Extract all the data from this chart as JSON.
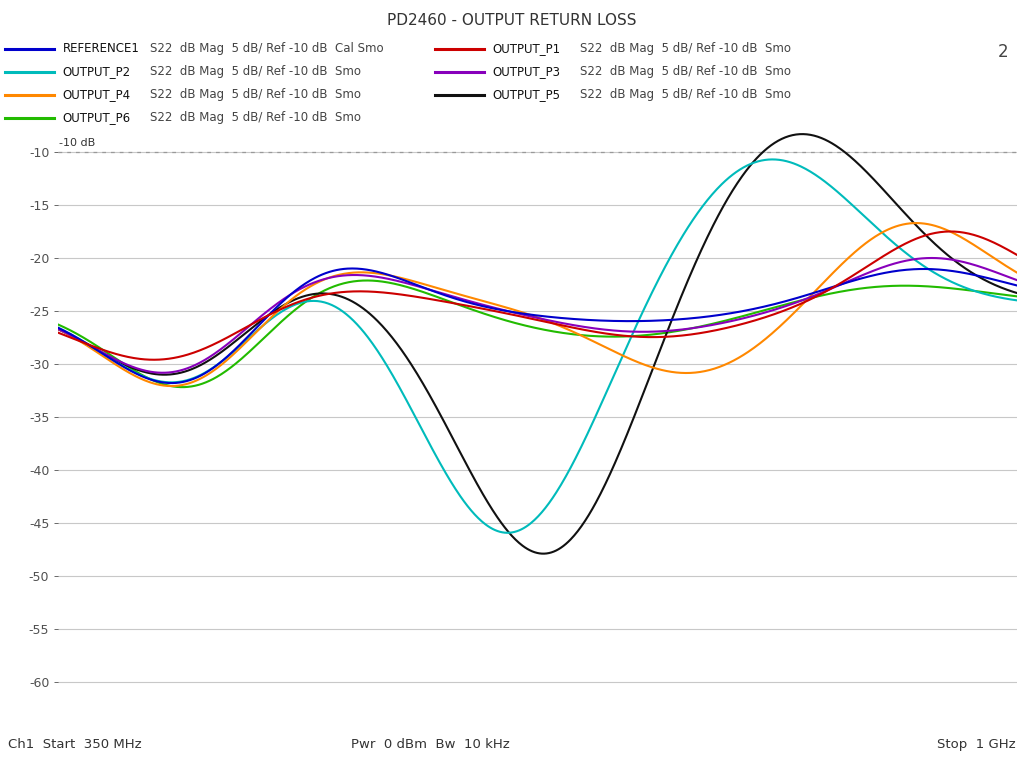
{
  "title": "PD2460 - OUTPUT RETURN LOSS",
  "ymin": -62,
  "ymax": -8,
  "ytick_vals": [
    -10,
    -15,
    -20,
    -25,
    -30,
    -35,
    -40,
    -45,
    -50,
    -55,
    -60
  ],
  "ref_level_db": -10,
  "bg_color": "#ffffff",
  "grid_color": "#c8c8c8",
  "text_color": "#505050",
  "legend_entries": [
    {
      "label": "REFERENCE1",
      "desc": "S22  dB Mag  5 dB/ Ref -10 dB  Cal Smo",
      "color": "#0000cc",
      "col": 0,
      "row": 0
    },
    {
      "label": "OUTPUT_P1",
      "desc": "S22  dB Mag  5 dB/ Ref -10 dB  Smo",
      "color": "#cc0000",
      "col": 1,
      "row": 0
    },
    {
      "label": "OUTPUT_P2",
      "desc": "S22  dB Mag  5 dB/ Ref -10 dB  Smo",
      "color": "#00bbbb",
      "col": 0,
      "row": 1
    },
    {
      "label": "OUTPUT_P3",
      "desc": "S22  dB Mag  5 dB/ Ref -10 dB  Smo",
      "color": "#8800bb",
      "col": 1,
      "row": 1
    },
    {
      "label": "OUTPUT_P4",
      "desc": "S22  dB Mag  5 dB/ Ref -10 dB  Smo",
      "color": "#ff8800",
      "col": 0,
      "row": 2
    },
    {
      "label": "OUTPUT_P5",
      "desc": "S22  dB Mag  5 dB/ Ref -10 dB  Smo",
      "color": "#111111",
      "col": 1,
      "row": 2
    },
    {
      "label": "OUTPUT_P6",
      "desc": "S22  dB Mag  5 dB/ Ref -10 dB  Smo",
      "color": "#22bb00",
      "col": 0,
      "row": 3
    }
  ],
  "marker_colors": [
    "#0000cc",
    "#cc0000",
    "#00bbbb",
    "#8800bb",
    "#ff8800",
    "#111111",
    "#22bb00"
  ],
  "number_label": "2",
  "bottom_left": "Ch1  Start  350 MHz",
  "bottom_center": "Pwr  0 dBm  Bw  10 kHz",
  "bottom_right": "Stop  1 GHz"
}
